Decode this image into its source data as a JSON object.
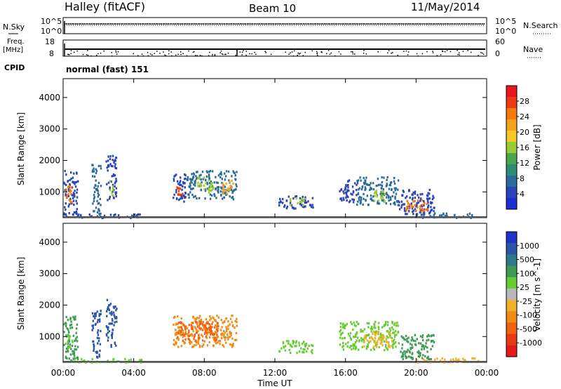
{
  "header": {
    "station": "Halley (fitACF)",
    "beam": "Beam 10",
    "date": "11/May/2014"
  },
  "side_labels": {
    "nsky": "N.Sky",
    "freq_top": "Freq.",
    "freq_unit": "[MHz]",
    "cpid": "CPID",
    "nsearch": "N.Search",
    "nave": "Nave"
  },
  "noise_panel": {
    "ytick_top": "10^5",
    "ytick_bottom": "10^0",
    "right_tick_top": "10^5",
    "right_tick_bottom": "10^0"
  },
  "freq_panel": {
    "left_tick_top": "18",
    "left_tick_bottom": "8",
    "right_tick_top": "60",
    "right_tick_bottom": "0"
  },
  "cpid_text": "normal (fast) 151",
  "colorbars": {
    "power": {
      "label": "Power [dB]",
      "ticks": [
        "28",
        "24",
        "20",
        "16",
        "12",
        "8",
        "4"
      ],
      "colors": [
        "#e8171b",
        "#ee3a12",
        "#f47a10",
        "#f5a31d",
        "#f6c62a",
        "#99cc33",
        "#4aa64a",
        "#2e8b78",
        "#2a6a9c",
        "#2a44b8",
        "#1b2fd0"
      ]
    },
    "velocity": {
      "label": "Velocity [m s^-1]",
      "ticks": [
        "1000",
        "500",
        "100",
        "25",
        "-25",
        "-100",
        "-500",
        "-1000"
      ],
      "colors": [
        "#1e34c8",
        "#2a55a8",
        "#2f7a8a",
        "#3e9a55",
        "#66cc33",
        "#b8b8b8",
        "#f2b02a",
        "#f08a18",
        "#ee6212",
        "#e83a14",
        "#e21a1a"
      ]
    }
  },
  "chart_data": [
    {
      "type": "heatmap",
      "name": "power",
      "ylabel": "Slant Range [km]",
      "yticks": [
        1000,
        2000,
        3000,
        4000
      ],
      "ylim": [
        180,
        4600
      ],
      "xlim": [
        0,
        24
      ],
      "patches": [
        {
          "t0": 0.0,
          "t1": 0.8,
          "r0": 200,
          "r1": 1700,
          "c": "#2a44b8"
        },
        {
          "t0": 0.05,
          "t1": 0.45,
          "r0": 700,
          "r1": 1300,
          "c": "#f47a10"
        },
        {
          "t0": 1.6,
          "t1": 2.1,
          "r0": 300,
          "r1": 1900,
          "c": "#2a6a9c"
        },
        {
          "t0": 2.4,
          "t1": 3.0,
          "r0": 700,
          "r1": 2200,
          "c": "#2a44b8"
        },
        {
          "t0": 2.6,
          "t1": 2.85,
          "r0": 900,
          "r1": 1400,
          "c": "#99cc33"
        },
        {
          "t0": 6.2,
          "t1": 7.0,
          "r0": 700,
          "r1": 1600,
          "c": "#2a44b8"
        },
        {
          "t0": 6.35,
          "t1": 6.75,
          "r0": 800,
          "r1": 1200,
          "c": "#ee3a12"
        },
        {
          "t0": 7.0,
          "t1": 9.8,
          "r0": 800,
          "r1": 1700,
          "c": "#2a6a9c"
        },
        {
          "t0": 7.6,
          "t1": 8.5,
          "r0": 1000,
          "r1": 1500,
          "c": "#99cc33"
        },
        {
          "t0": 9.0,
          "t1": 9.6,
          "r0": 900,
          "r1": 1400,
          "c": "#f5a31d"
        },
        {
          "t0": 0.5,
          "t1": 4.5,
          "r0": 200,
          "r1": 320,
          "c": "#2a44b8"
        },
        {
          "t0": 12.2,
          "t1": 14.2,
          "r0": 500,
          "r1": 900,
          "c": "#2a44b8"
        },
        {
          "t0": 12.8,
          "t1": 13.6,
          "r0": 600,
          "r1": 850,
          "c": "#99cc33"
        },
        {
          "t0": 15.6,
          "t1": 16.6,
          "r0": 700,
          "r1": 1400,
          "c": "#2a44b8"
        },
        {
          "t0": 16.6,
          "t1": 19.0,
          "r0": 600,
          "r1": 1500,
          "c": "#2a6a9c"
        },
        {
          "t0": 17.5,
          "t1": 18.2,
          "r0": 700,
          "r1": 1100,
          "c": "#99cc33"
        },
        {
          "t0": 19.0,
          "t1": 21.0,
          "r0": 300,
          "r1": 1100,
          "c": "#2a44b8"
        },
        {
          "t0": 19.4,
          "t1": 20.6,
          "r0": 400,
          "r1": 800,
          "c": "#f47a10"
        },
        {
          "t0": 20.0,
          "t1": 23.5,
          "r0": 200,
          "r1": 350,
          "c": "#2a6a9c"
        }
      ]
    },
    {
      "type": "heatmap",
      "name": "velocity",
      "ylabel": "Slant Range [km]",
      "xlabel": "Time UT",
      "yticks": [
        1000,
        2000,
        3000,
        4000
      ],
      "ylim": [
        180,
        4600
      ],
      "xlim": [
        0,
        24
      ],
      "xticks": [
        "00:00",
        "04:00",
        "08:00",
        "12:00",
        "16:00",
        "20:00",
        "00:00"
      ],
      "patches": [
        {
          "t0": 0.0,
          "t1": 0.8,
          "r0": 200,
          "r1": 1700,
          "c": "#3e9a55"
        },
        {
          "t0": 0.1,
          "t1": 0.5,
          "r0": 600,
          "r1": 1100,
          "c": "#66cc33"
        },
        {
          "t0": 1.6,
          "t1": 2.1,
          "r0": 300,
          "r1": 1900,
          "c": "#2a55a8"
        },
        {
          "t0": 2.4,
          "t1": 3.0,
          "r0": 700,
          "r1": 2200,
          "c": "#2a55a8"
        },
        {
          "t0": 6.2,
          "t1": 9.8,
          "r0": 700,
          "r1": 1700,
          "c": "#f08a18"
        },
        {
          "t0": 6.4,
          "t1": 8.8,
          "r0": 900,
          "r1": 1500,
          "c": "#ee6212"
        },
        {
          "t0": 0.5,
          "t1": 4.5,
          "r0": 200,
          "r1": 320,
          "c": "#66cc33"
        },
        {
          "t0": 12.2,
          "t1": 14.2,
          "r0": 500,
          "r1": 900,
          "c": "#66cc33"
        },
        {
          "t0": 15.6,
          "t1": 19.0,
          "r0": 600,
          "r1": 1500,
          "c": "#66cc33"
        },
        {
          "t0": 17.0,
          "t1": 18.6,
          "r0": 700,
          "r1": 1200,
          "c": "#f2b02a"
        },
        {
          "t0": 19.0,
          "t1": 21.0,
          "r0": 300,
          "r1": 1100,
          "c": "#3e9a55"
        },
        {
          "t0": 20.0,
          "t1": 23.5,
          "r0": 200,
          "r1": 350,
          "c": "#f2b02a"
        }
      ]
    }
  ]
}
